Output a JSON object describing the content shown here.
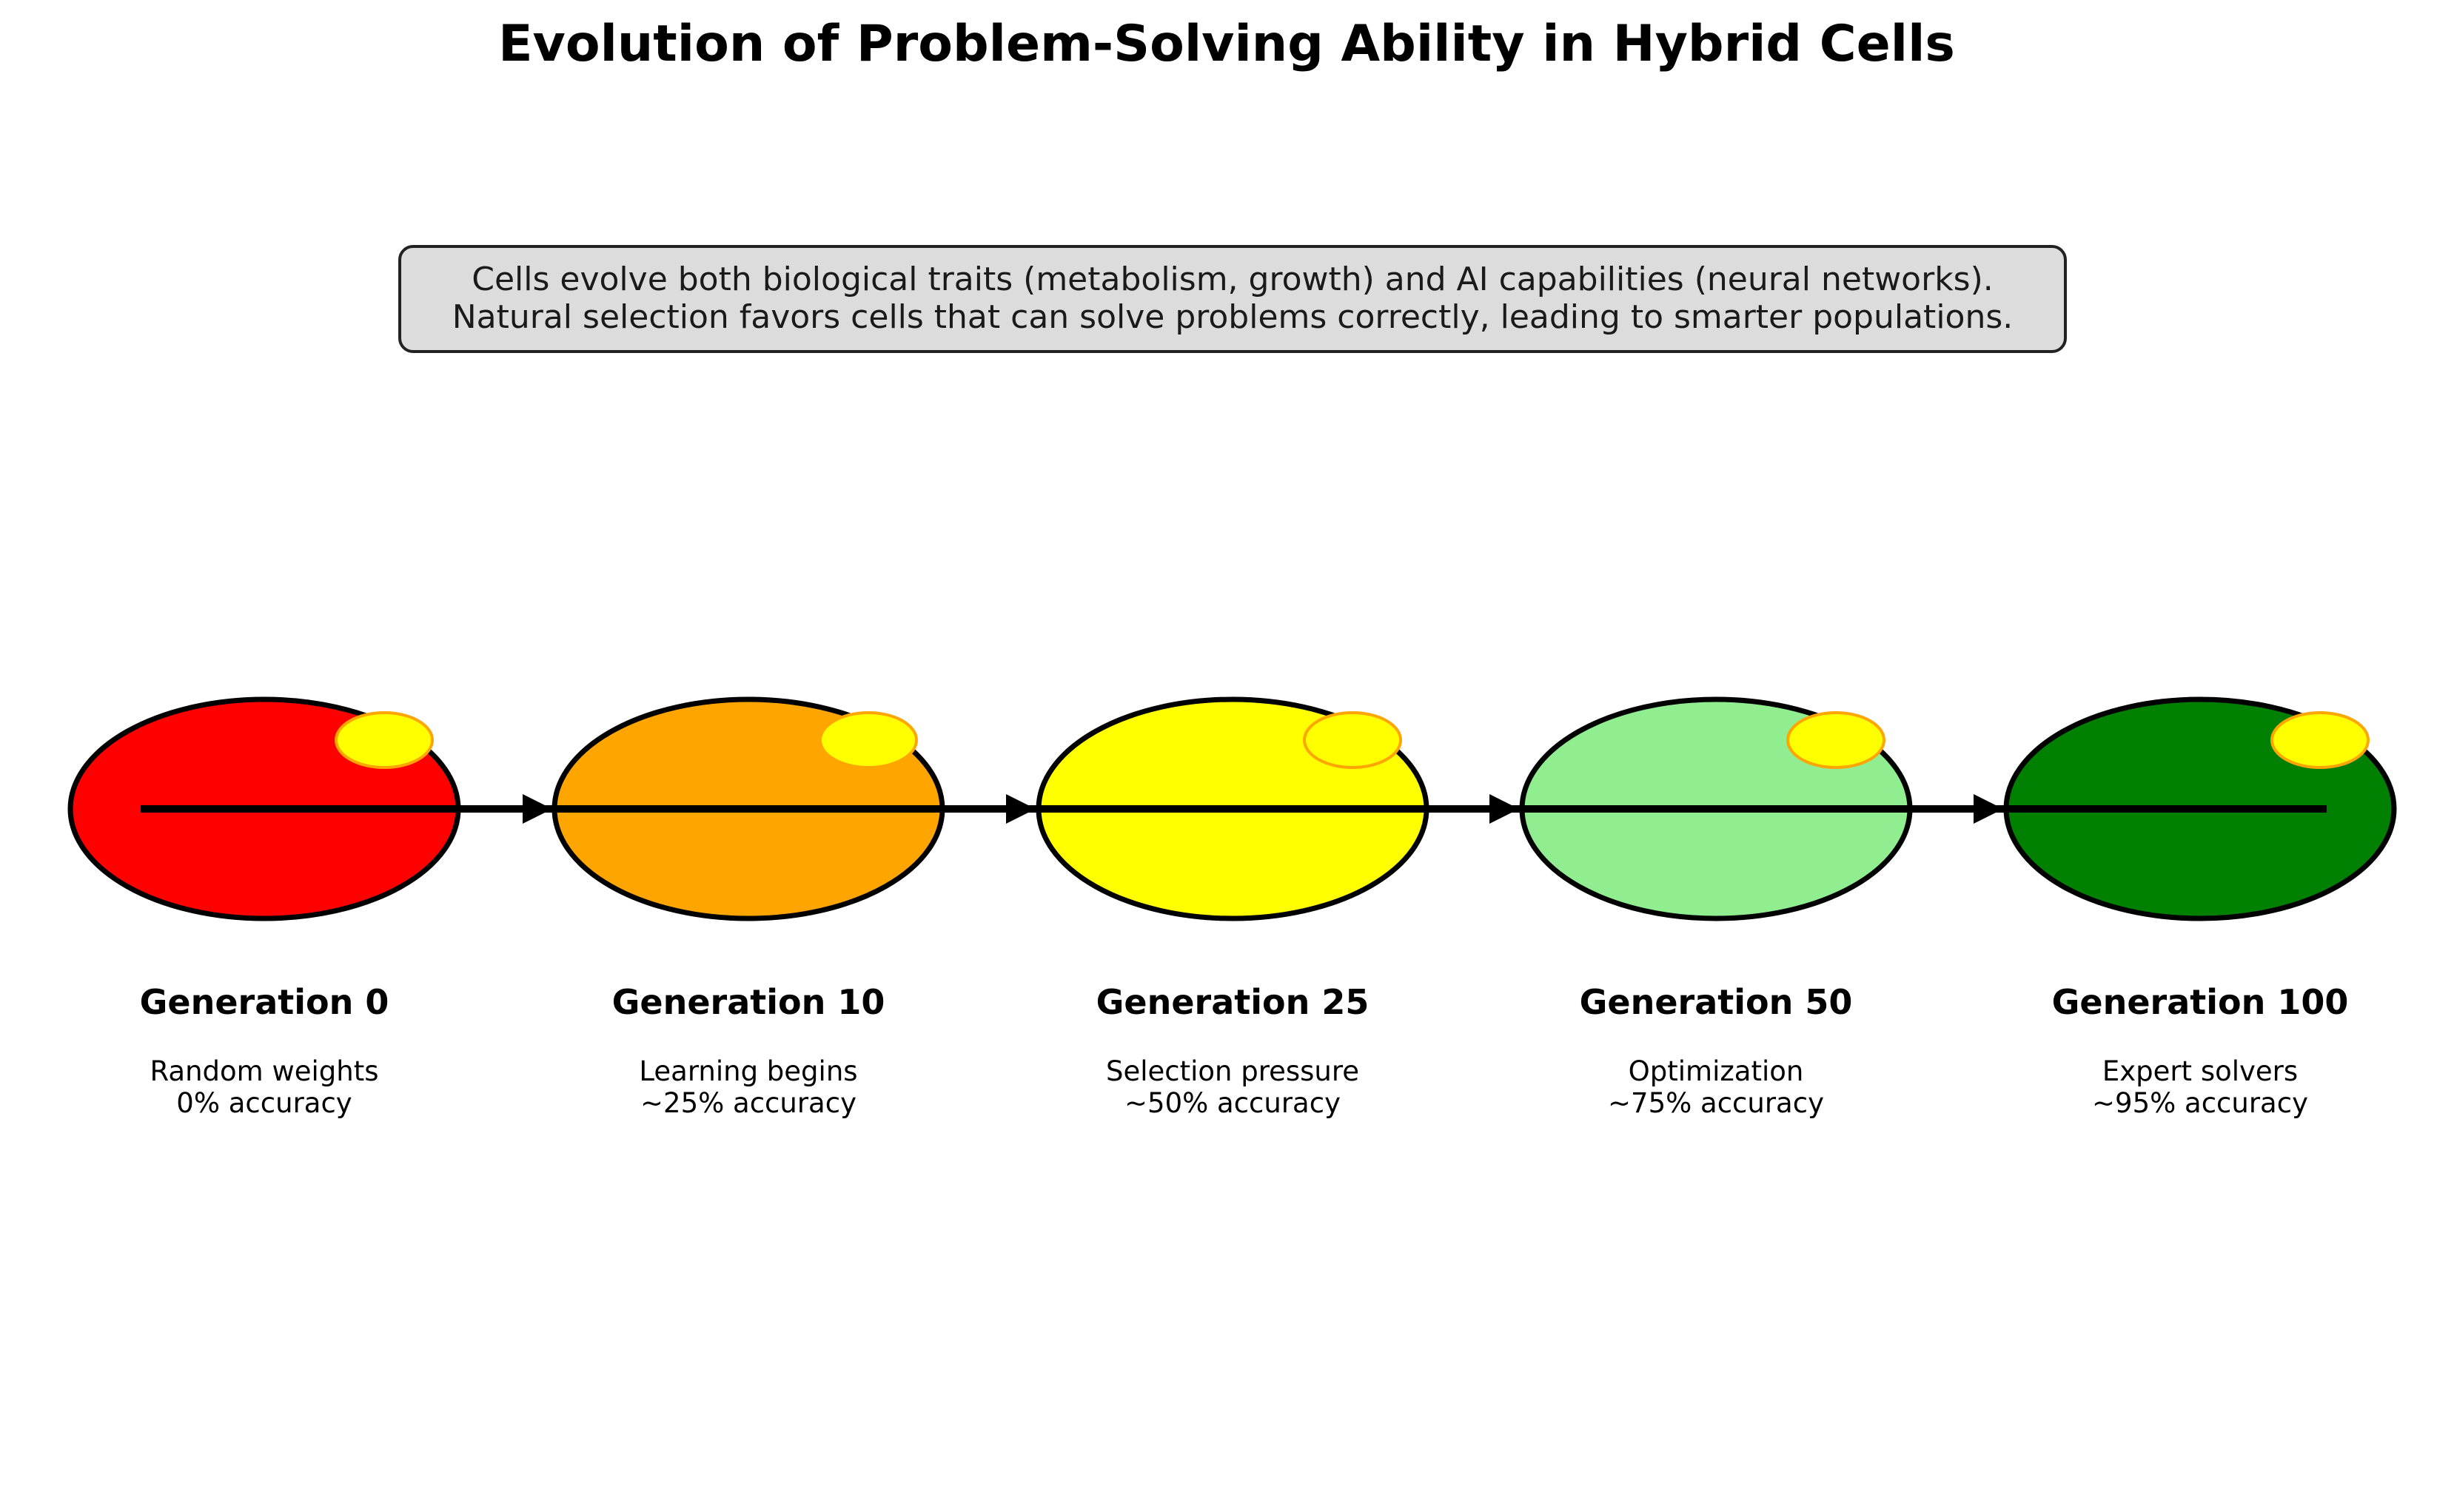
{
  "title": "Evolution of Problem-Solving Ability in Hybrid Cells",
  "description": {
    "line1": "Cells evolve both biological traits (metabolism, growth) and AI capabilities (neural networks).",
    "line2": "Natural selection favors cells that can solve problems correctly, leading to smarter populations.",
    "box_fill": "#dcdcdc",
    "box_stroke": "#222222"
  },
  "stages": [
    {
      "title": "Generation 0",
      "line1": "Random weights",
      "line2": "0% accuracy",
      "cell_color": "#ff0000"
    },
    {
      "title": "Generation 10",
      "line1": "Learning begins",
      "line2": "~25% accuracy",
      "cell_color": "#ffa500"
    },
    {
      "title": "Generation 25",
      "line1": "Selection pressure",
      "line2": "~50% accuracy",
      "cell_color": "#ffff00"
    },
    {
      "title": "Generation 50",
      "line1": "Optimization",
      "line2": "~75% accuracy",
      "cell_color": "#90ee90"
    },
    {
      "title": "Generation 100",
      "line1": "Expert solvers",
      "line2": "~95% accuracy",
      "cell_color": "#008000"
    }
  ],
  "colors": {
    "cell_outline": "#000000",
    "nucleus_fill": "#ffff00",
    "nucleus_stroke": "#ffa500",
    "timeline": "#000000"
  }
}
